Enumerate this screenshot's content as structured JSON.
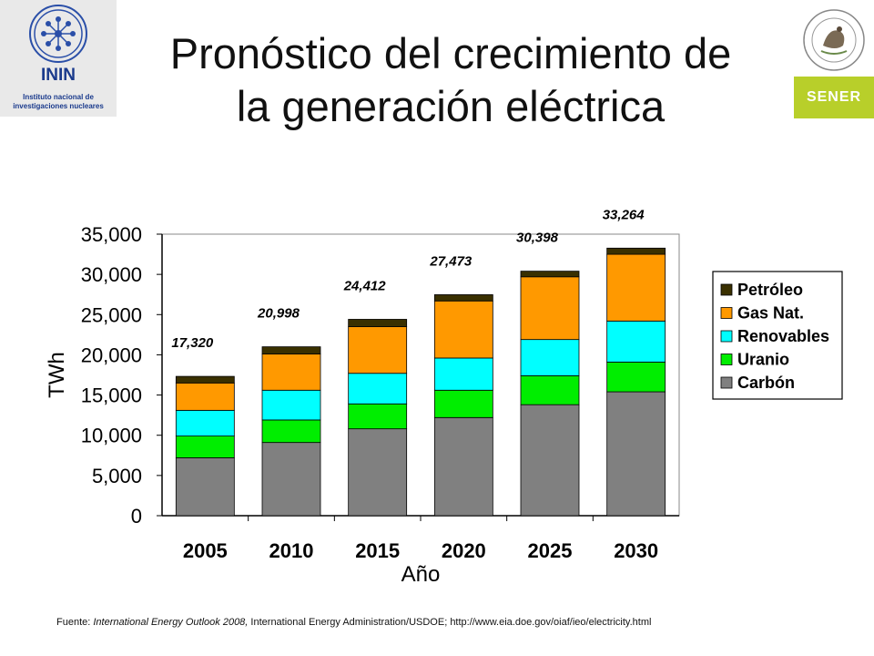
{
  "header": {
    "title_line1": "Pronóstico del crecimiento de",
    "title_line2": "la generación eléctrica"
  },
  "logos": {
    "left_name": "ININ",
    "left_sub1": "Instituto nacional de",
    "left_sub2": "investigaciones nucleares",
    "left_icon": "atom-emblem-icon",
    "right_name": "SENER",
    "right_icon": "mexican-coat-of-arms-icon",
    "right_band_color": "#b8cf2a"
  },
  "chart_data": {
    "type": "bar",
    "stacked": true,
    "categories": [
      "2005",
      "2010",
      "2015",
      "2020",
      "2025",
      "2030"
    ],
    "series": [
      {
        "name": "Carbón",
        "color": "#808080",
        "values": [
          7200,
          9100,
          10800,
          12200,
          13800,
          15400
        ]
      },
      {
        "name": "Uranio",
        "color": "#00ee00",
        "values": [
          2700,
          2800,
          3100,
          3400,
          3600,
          3700
        ]
      },
      {
        "name": "Renovables",
        "color": "#00ffff",
        "values": [
          3200,
          3700,
          3800,
          4000,
          4500,
          5100
        ]
      },
      {
        "name": "Gas Nat.",
        "color": "#ff9900",
        "values": [
          3400,
          4500,
          5800,
          7100,
          7800,
          8300
        ]
      },
      {
        "name": "Petróleo",
        "color": "#3a3000",
        "values": [
          820,
          898,
          912,
          773,
          698,
          764
        ]
      }
    ],
    "totals": [
      "17,320",
      "20,998",
      "24,412",
      "27,473",
      "30,398",
      "33,264"
    ],
    "xlabel": "Año",
    "ylabel": "TWh",
    "ylim": [
      0,
      35000
    ],
    "yticks": [
      0,
      5000,
      10000,
      15000,
      20000,
      25000,
      30000,
      35000
    ],
    "ytick_labels": [
      "0",
      "5,000",
      "10,000",
      "15,000",
      "20,000",
      "25,000",
      "30,000",
      "35,000"
    ],
    "legend_order": [
      "Petróleo",
      "Gas Nat.",
      "Renovables",
      "Uranio",
      "Carbón"
    ],
    "legend_position": "right",
    "grid": false
  },
  "footer": {
    "prefix": "Fuente: ",
    "italic1": "International Energy Outlook 2008,",
    "rest": " International Energy Administration/USDOE; http://www.eia.doe.gov/oiaf/ieo/electricity.html"
  }
}
